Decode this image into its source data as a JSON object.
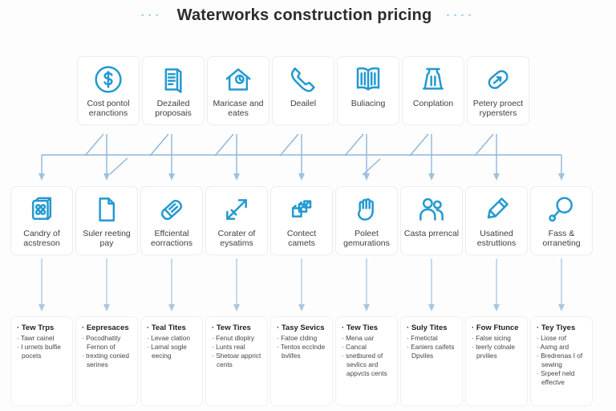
{
  "title": {
    "text": "Waterworks construction pricing",
    "dots_left": "···",
    "dots_right": "····"
  },
  "colors": {
    "icon_blue": "#2499d1",
    "arrow_blue": "#8fb5da",
    "title_dots_cyan": "#8ccfe6",
    "card_border": "#ededed",
    "text_dark": "#3f3f3f"
  },
  "row1": {
    "cards": [
      {
        "icon": "dollar-circle-icon",
        "label": "Cost pontol eranctions"
      },
      {
        "icon": "document-icon",
        "label": "Dezailed proposais"
      },
      {
        "icon": "house-icon",
        "label": "Maricase and eates"
      },
      {
        "icon": "phone-icon",
        "label": "Deailel"
      },
      {
        "icon": "book-icon",
        "label": "Buliacing"
      },
      {
        "icon": "tower-icon",
        "label": "Conplation"
      },
      {
        "icon": "key-icon",
        "label": "Petery proect rypersters"
      }
    ]
  },
  "row2": {
    "cards": [
      {
        "icon": "calc-box-icon",
        "label": "Candry of acstreson"
      },
      {
        "icon": "file-icon",
        "label": "Suler reeting pay"
      },
      {
        "icon": "battery-icon",
        "label": "Effciental eorractions"
      },
      {
        "icon": "rocket-arrow-icon",
        "label": "Corater of eysatims"
      },
      {
        "icon": "cubes-icon",
        "label": "Contect camets"
      },
      {
        "icon": "hand-icon",
        "label": "Poleet gemurations"
      },
      {
        "icon": "people-icon",
        "label": "Casta prrencal"
      },
      {
        "icon": "pencil-icon",
        "label": "Usatined estruttions"
      },
      {
        "icon": "magnifier-icon",
        "label": "Fass & orraneting"
      }
    ]
  },
  "row3": {
    "boxes": [
      {
        "header": "Tew Trps",
        "items": [
          "Tawr cainel",
          "I urnets bulfie pocets"
        ]
      },
      {
        "header": "Eepresaces",
        "items": [
          "Pocodhatity Fernon of",
          "trexting conied serines"
        ]
      },
      {
        "header": "Teal Tites",
        "items": [
          "Levae clation",
          "Lamal sogle eecing"
        ]
      },
      {
        "header": "Tew Tires",
        "items": [
          "Fenut dloplry",
          "Lunts real",
          "Shetoar apprict cents"
        ]
      },
      {
        "header": "Tasy Sevics",
        "items": [
          "Fatoe clding",
          "Tentos ecclnde bvlifes"
        ]
      },
      {
        "header": "Tew Ties",
        "items": [
          "Mena uar",
          "Cancal",
          "snetbured of sevlics ard appvcts cents"
        ]
      },
      {
        "header": "Suly Tites",
        "items": [
          "Fmetictal",
          "Eaniers caifets Dpviles"
        ]
      },
      {
        "header": "Fow Ftunce",
        "items": [
          "False sicing",
          "teerly colnale prvilies"
        ]
      },
      {
        "header": "Tey Tiyes",
        "items": [
          "Liose rof",
          "Asmg ard",
          "Bredrenas I of sewing",
          "Srpeef neld effectve"
        ]
      }
    ]
  }
}
